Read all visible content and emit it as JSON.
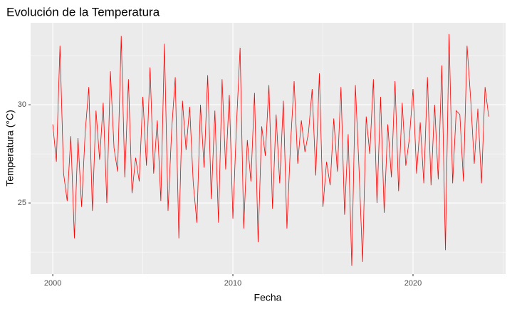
{
  "chart_data": {
    "type": "line",
    "title": "Evolución de la Temperatura",
    "x_label": "Fecha",
    "y_label": "Temperatura (°C)",
    "x": [
      2000,
      2000.2,
      2000.4,
      2000.6,
      2000.8,
      2001,
      2001.2,
      2001.4,
      2001.6,
      2001.8,
      2002,
      2002.2,
      2002.4,
      2002.6,
      2002.8,
      2003,
      2003.2,
      2003.4,
      2003.6,
      2003.8,
      2004,
      2004.2,
      2004.4,
      2004.6,
      2004.8,
      2005,
      2005.2,
      2005.4,
      2005.6,
      2005.8,
      2006,
      2006.2,
      2006.4,
      2006.6,
      2006.8,
      2007,
      2007.2,
      2007.4,
      2007.6,
      2007.8,
      2008,
      2008.2,
      2008.4,
      2008.6,
      2008.8,
      2009,
      2009.2,
      2009.4,
      2009.6,
      2009.8,
      2010,
      2010.2,
      2010.4,
      2010.6,
      2010.8,
      2011,
      2011.2,
      2011.4,
      2011.6,
      2011.8,
      2012,
      2012.2,
      2012.4,
      2012.6,
      2012.8,
      2013,
      2013.2,
      2013.4,
      2013.6,
      2013.8,
      2014,
      2014.2,
      2014.4,
      2014.6,
      2014.8,
      2015,
      2015.2,
      2015.4,
      2015.6,
      2015.8,
      2016,
      2016.2,
      2016.4,
      2016.6,
      2016.8,
      2017,
      2017.2,
      2017.4,
      2017.6,
      2017.8,
      2018,
      2018.2,
      2018.4,
      2018.6,
      2018.8,
      2019,
      2019.2,
      2019.4,
      2019.6,
      2019.8,
      2020,
      2020.2,
      2020.4,
      2020.6,
      2020.8,
      2021,
      2021.2,
      2021.4,
      2021.6,
      2021.8,
      2022,
      2022.2,
      2022.4,
      2022.6,
      2022.8,
      2023,
      2023.2,
      2023.4,
      2023.6,
      2023.8,
      2024,
      2024.2
    ],
    "series": [
      {
        "color": "#ff0000",
        "values": [
          29.0,
          27.1,
          33.0,
          26.5,
          25.1,
          28.4,
          23.2,
          28.3,
          24.8,
          28.6,
          30.9,
          24.6,
          29.7,
          27.2,
          30.1,
          25.0,
          31.7,
          27.8,
          26.6,
          33.5,
          26.3,
          31.3,
          25.5,
          27.3,
          26.1,
          30.4,
          26.9,
          31.9,
          26.5,
          29.2,
          25.1,
          33.1,
          24.6,
          28.7,
          31.4,
          23.2,
          30.2,
          27.7,
          29.9,
          26.0,
          24.0,
          30.0,
          26.8,
          31.5,
          25.2,
          29.7,
          24.0,
          31.3,
          26.7,
          30.5,
          24.2,
          29.0,
          32.9,
          23.7,
          28.2,
          26.1,
          30.6,
          23.0,
          28.9,
          27.4,
          31.0,
          24.7,
          29.5,
          26.0,
          30.2,
          23.7,
          28.0,
          31.2,
          27.0,
          29.2,
          27.6,
          28.6,
          30.8,
          26.4,
          31.6,
          24.8,
          27.1,
          25.9,
          29.3,
          26.6,
          30.9,
          24.4,
          28.5,
          21.8,
          31.0,
          26.8,
          22.0,
          29.4,
          27.5,
          31.3,
          25.0,
          30.4,
          24.5,
          29.0,
          26.3,
          31.2,
          25.6,
          30.1,
          26.9,
          28.3,
          30.8,
          26.5,
          29.1,
          26.0,
          31.4,
          25.9,
          30.0,
          26.2,
          32.0,
          22.6,
          33.6,
          26.0,
          29.7,
          29.5,
          26.1,
          33.0,
          30.3,
          27.0,
          29.8,
          26.0,
          30.9,
          29.4
        ]
      }
    ],
    "xlim": [
      1998.77,
      2025.14
    ],
    "ylim": [
      21.38,
      34.17
    ],
    "xticks": [
      2000,
      2010,
      2020
    ],
    "yticks": [
      25,
      30
    ],
    "x_minor_grid": [
      2005,
      2015,
      2025
    ],
    "y_minor_grid": [
      22.5,
      27.5,
      32.5
    ],
    "grid": true,
    "background": "#ebebeb"
  }
}
